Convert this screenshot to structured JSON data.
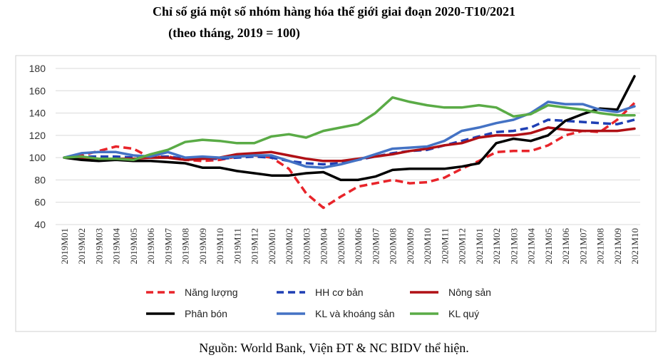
{
  "chart_data": {
    "type": "line",
    "title": "Chỉ số giá một số nhóm hàng hóa thế giới giai đoạn 2020-T10/2021",
    "subtitle": "(theo tháng, 2019 = 100)",
    "ylim": [
      40,
      180
    ],
    "yticks": [
      40,
      60,
      80,
      100,
      120,
      140,
      160,
      180
    ],
    "grid": "horizontal",
    "legend_placement": "bottom",
    "categories": [
      "2019M01",
      "2019M02",
      "2019M03",
      "2019M04",
      "2019M05",
      "2019M06",
      "2019M07",
      "2019M08",
      "2019M09",
      "2019M10",
      "2019M11",
      "2019M12",
      "2020M01",
      "2020M02",
      "2020M03",
      "2020M04",
      "2020M05",
      "2020M06",
      "2020M07",
      "2020M08",
      "2020M09",
      "2020M10",
      "2020M11",
      "2020M12",
      "2021M01",
      "2021M02",
      "2021M03",
      "2021M04",
      "2021M05",
      "2021M06",
      "2021M07",
      "2021M08",
      "2021M09",
      "2021M10"
    ],
    "series": [
      {
        "name": "Năng lượng",
        "color": "#e8242a",
        "dash": true,
        "values": [
          100,
          102,
          106,
          110,
          108,
          100,
          101,
          98,
          97,
          98,
          101,
          102,
          100,
          90,
          68,
          55,
          65,
          74,
          77,
          80,
          77,
          78,
          82,
          90,
          97,
          105,
          106,
          106,
          111,
          120,
          124,
          123,
          134,
          149
        ]
      },
      {
        "name": "HH cơ bản",
        "color": "#1f3fb4",
        "dash": true,
        "values": [
          100,
          101,
          101,
          101,
          100,
          101,
          101,
          99,
          99,
          99,
          100,
          101,
          100,
          97,
          95,
          94,
          95,
          98,
          101,
          104,
          106,
          107,
          111,
          115,
          119,
          123,
          124,
          127,
          134,
          133,
          132,
          131,
          130,
          134
        ]
      },
      {
        "name": "Nông sản",
        "color": "#b01015",
        "dash": false,
        "values": [
          100,
          100,
          99,
          99,
          99,
          100,
          100,
          98,
          99,
          100,
          103,
          104,
          105,
          102,
          99,
          97,
          97,
          99,
          101,
          103,
          106,
          108,
          111,
          113,
          118,
          120,
          120,
          122,
          127,
          125,
          124,
          124,
          124,
          126
        ]
      },
      {
        "name": "Phân bón",
        "color": "#000000",
        "dash": false,
        "values": [
          100,
          98,
          97,
          98,
          97,
          97,
          96,
          95,
          91,
          91,
          88,
          86,
          84,
          84,
          86,
          87,
          80,
          80,
          83,
          89,
          90,
          90,
          90,
          92,
          95,
          113,
          117,
          115,
          120,
          133,
          139,
          144,
          143,
          173
        ]
      },
      {
        "name": "KL và khoáng sản",
        "color": "#4472c4",
        "dash": false,
        "values": [
          100,
          104,
          105,
          105,
          102,
          101,
          105,
          100,
          101,
          100,
          101,
          102,
          102,
          97,
          92,
          91,
          94,
          98,
          103,
          108,
          109,
          110,
          115,
          124,
          127,
          131,
          134,
          140,
          150,
          148,
          148,
          143,
          141,
          146
        ]
      },
      {
        "name": "KL quý",
        "color": "#5aab46",
        "dash": false,
        "values": [
          100,
          101,
          99,
          99,
          98,
          103,
          107,
          114,
          116,
          115,
          113,
          113,
          119,
          121,
          118,
          124,
          127,
          130,
          140,
          154,
          150,
          147,
          145,
          145,
          147,
          145,
          137,
          139,
          147,
          145,
          143,
          140,
          138,
          138
        ]
      }
    ]
  },
  "source_note": "Nguồn: World Bank, Viện ĐT & NC BIDV thể hiện."
}
